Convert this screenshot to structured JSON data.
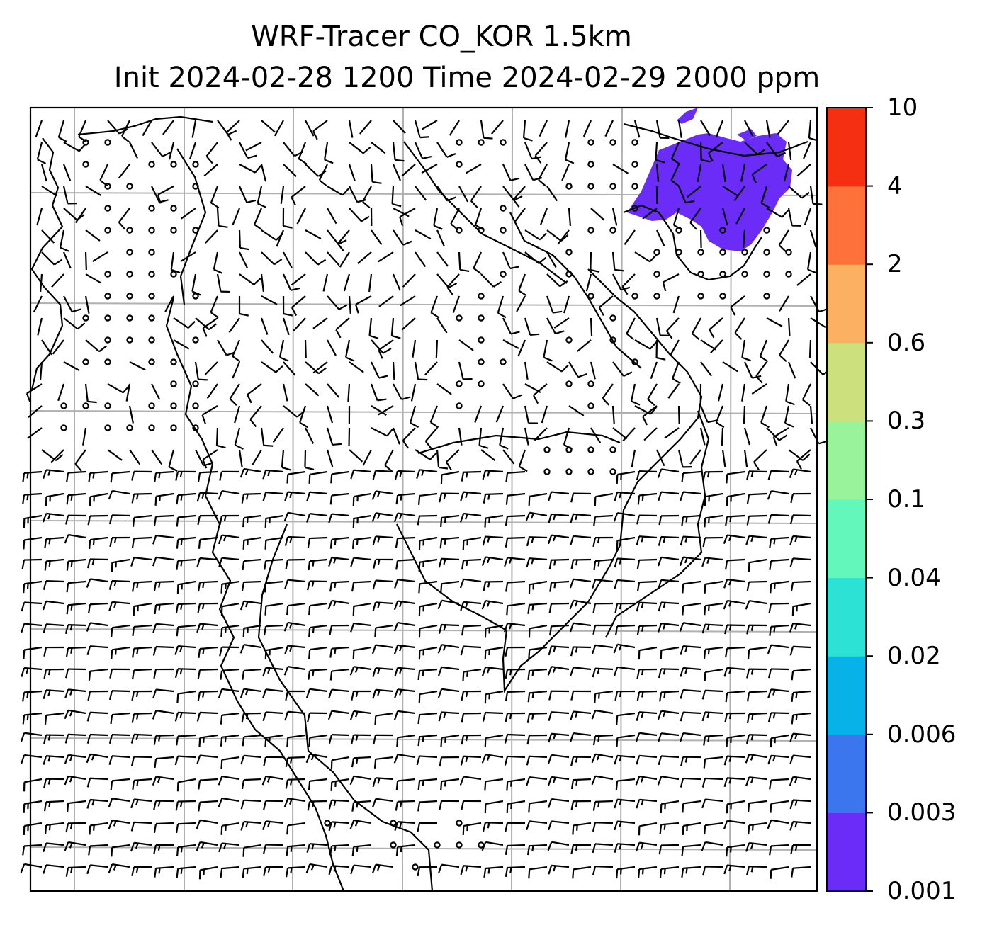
{
  "title": {
    "line1": "WRF-Tracer CO_KOR 1.5km",
    "line2": "Init 2024-02-28 1200 Time 2024-02-29 2000 ppm"
  },
  "colorbar": {
    "levels": [
      "0.001",
      "0.003",
      "0.006",
      "0.02",
      "0.04",
      "0.1",
      "0.3",
      "0.6",
      "2",
      "4",
      "10"
    ],
    "colors": [
      "#6a2cf6",
      "#3c76ef",
      "#07b2e9",
      "#2ce2d4",
      "#64f7bb",
      "#98f39a",
      "#cce07e",
      "#fbb062",
      "#fe713b",
      "#f42f12"
    ]
  },
  "map": {
    "wind_barbs": "black",
    "grid_color": "#b0b0b0",
    "coastline_color": "black",
    "plume_color": "#6a2cf6"
  }
}
